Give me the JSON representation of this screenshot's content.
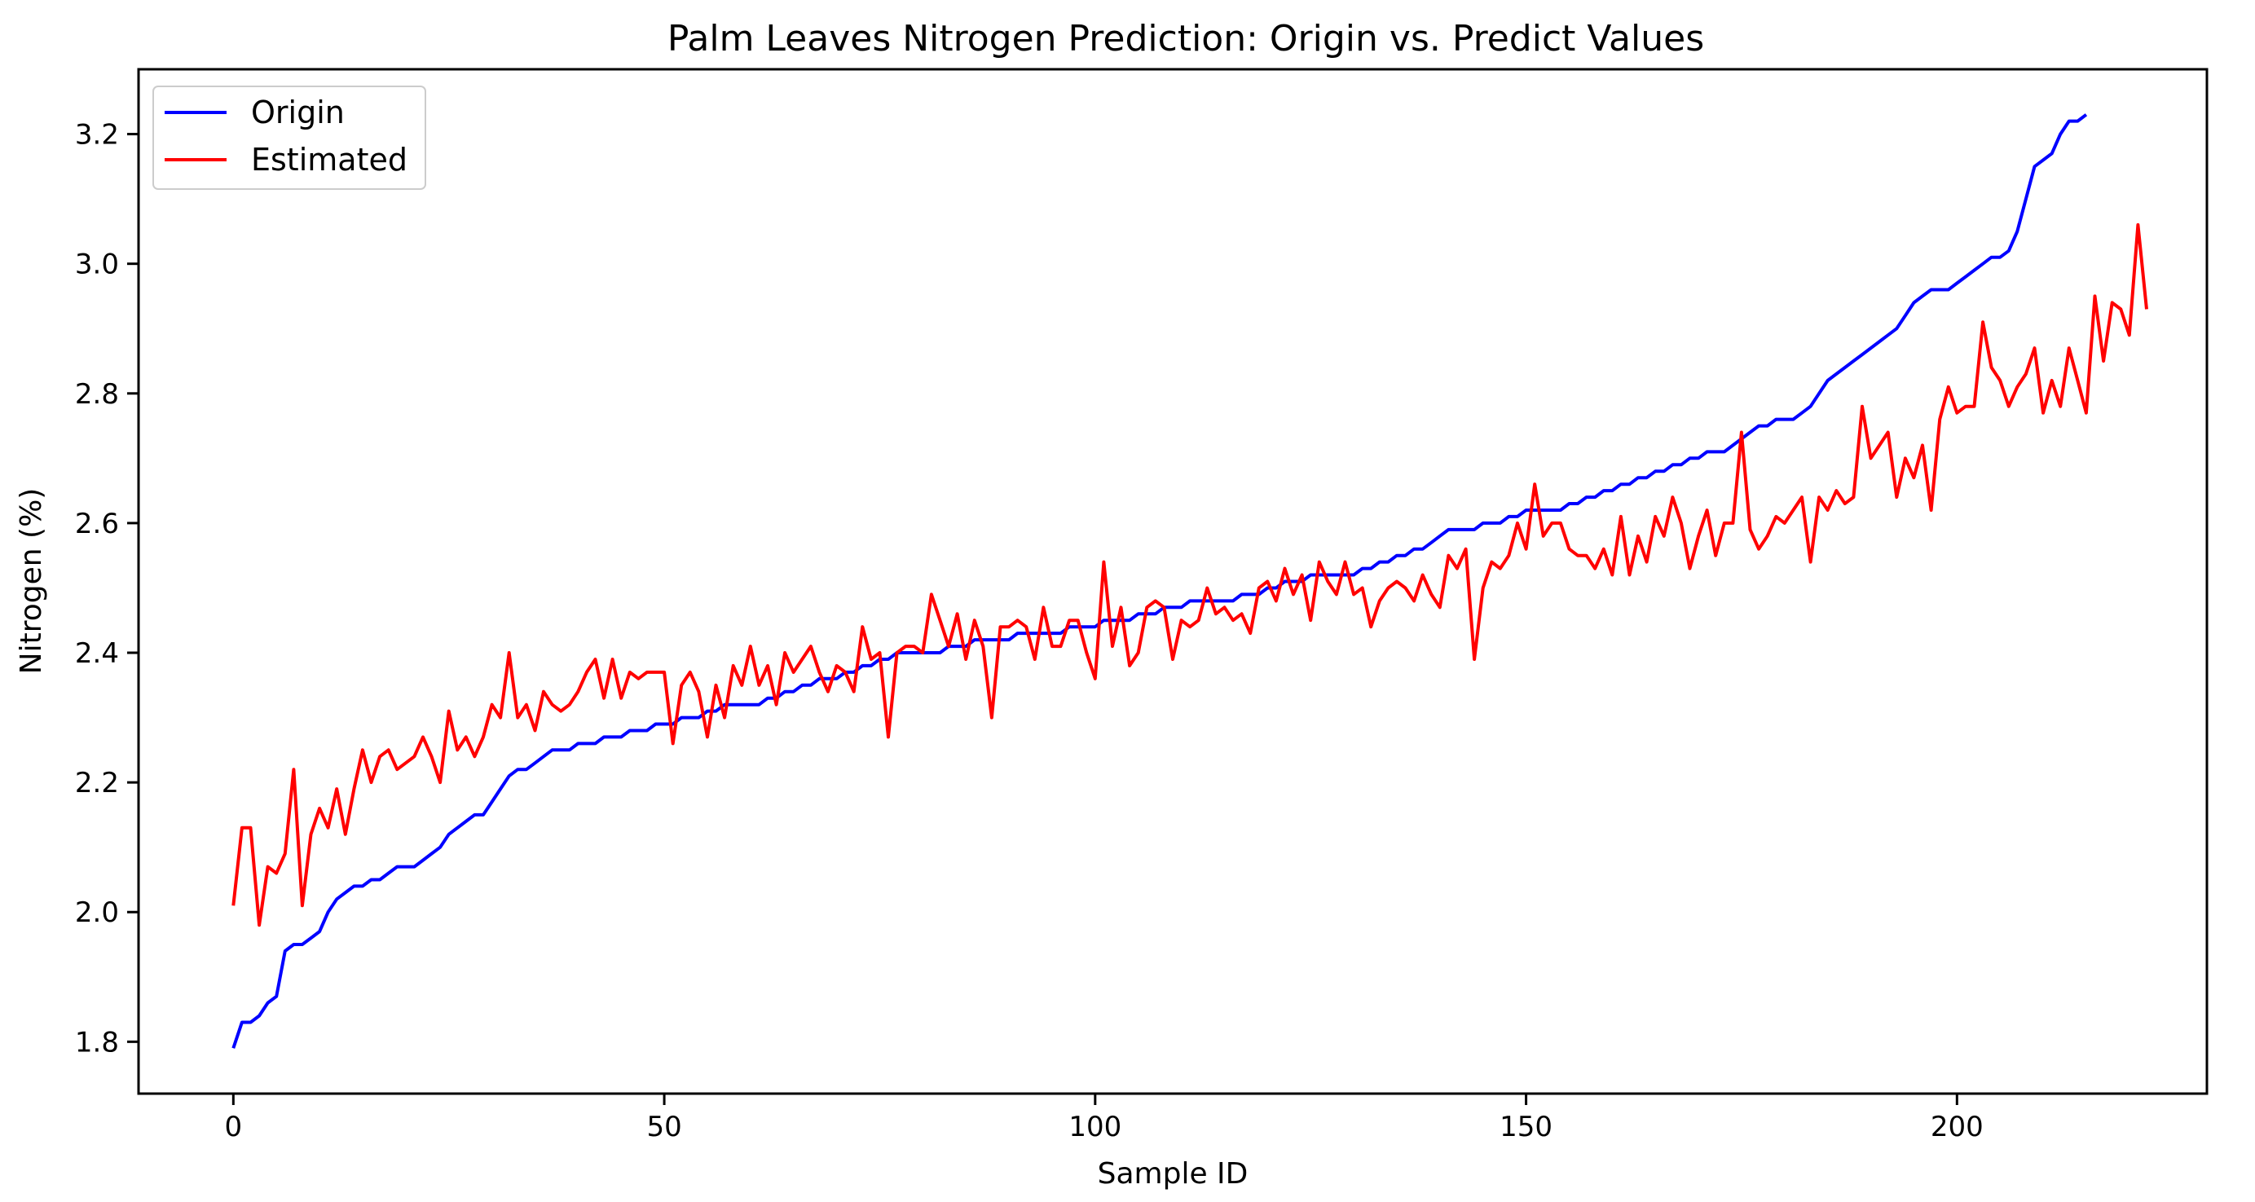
{
  "chart_data": {
    "type": "line",
    "title": "Palm Leaves Nitrogen Prediction: Origin vs. Predict Values",
    "xlabel": "Sample ID",
    "ylabel": "Nitrogen (%)",
    "xlim": [
      -11,
      229
    ],
    "ylim": [
      1.72,
      3.3
    ],
    "xticks": [
      0,
      50,
      100,
      150,
      200
    ],
    "yticks": [
      1.8,
      2.0,
      2.2,
      2.4,
      2.6,
      2.8,
      3.0,
      3.2
    ],
    "legend_position": "upper-left",
    "grid": false,
    "series": [
      {
        "name": "Origin",
        "color": "#0000ff",
        "x_start": 0,
        "values": [
          1.79,
          1.83,
          1.83,
          1.84,
          1.86,
          1.87,
          1.94,
          1.95,
          1.95,
          1.96,
          1.97,
          2.0,
          2.02,
          2.03,
          2.04,
          2.04,
          2.05,
          2.05,
          2.06,
          2.07,
          2.07,
          2.07,
          2.08,
          2.09,
          2.1,
          2.12,
          2.13,
          2.14,
          2.15,
          2.15,
          2.17,
          2.19,
          2.21,
          2.22,
          2.22,
          2.23,
          2.24,
          2.25,
          2.25,
          2.25,
          2.26,
          2.26,
          2.26,
          2.27,
          2.27,
          2.27,
          2.28,
          2.28,
          2.28,
          2.29,
          2.29,
          2.29,
          2.3,
          2.3,
          2.3,
          2.31,
          2.31,
          2.32,
          2.32,
          2.32,
          2.32,
          2.32,
          2.33,
          2.33,
          2.34,
          2.34,
          2.35,
          2.35,
          2.36,
          2.36,
          2.36,
          2.37,
          2.37,
          2.38,
          2.38,
          2.39,
          2.39,
          2.4,
          2.4,
          2.4,
          2.4,
          2.4,
          2.4,
          2.41,
          2.41,
          2.41,
          2.42,
          2.42,
          2.42,
          2.42,
          2.42,
          2.43,
          2.43,
          2.43,
          2.43,
          2.43,
          2.43,
          2.44,
          2.44,
          2.44,
          2.44,
          2.45,
          2.45,
          2.45,
          2.45,
          2.46,
          2.46,
          2.46,
          2.47,
          2.47,
          2.47,
          2.48,
          2.48,
          2.48,
          2.48,
          2.48,
          2.48,
          2.49,
          2.49,
          2.49,
          2.5,
          2.5,
          2.51,
          2.51,
          2.51,
          2.52,
          2.52,
          2.52,
          2.52,
          2.52,
          2.52,
          2.53,
          2.53,
          2.54,
          2.54,
          2.55,
          2.55,
          2.56,
          2.56,
          2.57,
          2.58,
          2.59,
          2.59,
          2.59,
          2.59,
          2.6,
          2.6,
          2.6,
          2.61,
          2.61,
          2.62,
          2.62,
          2.62,
          2.62,
          2.62,
          2.63,
          2.63,
          2.64,
          2.64,
          2.65,
          2.65,
          2.66,
          2.66,
          2.67,
          2.67,
          2.68,
          2.68,
          2.69,
          2.69,
          2.7,
          2.7,
          2.71,
          2.71,
          2.71,
          2.72,
          2.73,
          2.74,
          2.75,
          2.75,
          2.76,
          2.76,
          2.76,
          2.77,
          2.78,
          2.8,
          2.82,
          2.83,
          2.84,
          2.85,
          2.86,
          2.87,
          2.88,
          2.89,
          2.9,
          2.92,
          2.94,
          2.95,
          2.96,
          2.96,
          2.96,
          2.97,
          2.98,
          2.99,
          3.0,
          3.01,
          3.01,
          3.02,
          3.05,
          3.1,
          3.15,
          3.16,
          3.17,
          3.2,
          3.22,
          3.22,
          3.23
        ]
      },
      {
        "name": "Estimated",
        "color": "#ff0000",
        "x_start": 0,
        "values": [
          2.01,
          2.13,
          2.13,
          1.98,
          2.07,
          2.06,
          2.09,
          2.22,
          2.01,
          2.12,
          2.16,
          2.13,
          2.19,
          2.12,
          2.19,
          2.25,
          2.2,
          2.24,
          2.25,
          2.22,
          2.23,
          2.24,
          2.27,
          2.24,
          2.2,
          2.31,
          2.25,
          2.27,
          2.24,
          2.27,
          2.32,
          2.3,
          2.4,
          2.3,
          2.32,
          2.28,
          2.34,
          2.32,
          2.31,
          2.32,
          2.34,
          2.37,
          2.39,
          2.33,
          2.39,
          2.33,
          2.37,
          2.36,
          2.37,
          2.37,
          2.37,
          2.26,
          2.35,
          2.37,
          2.34,
          2.27,
          2.35,
          2.3,
          2.38,
          2.35,
          2.41,
          2.35,
          2.38,
          2.32,
          2.4,
          2.37,
          2.39,
          2.41,
          2.37,
          2.34,
          2.38,
          2.37,
          2.34,
          2.44,
          2.39,
          2.4,
          2.27,
          2.4,
          2.41,
          2.41,
          2.4,
          2.49,
          2.45,
          2.41,
          2.46,
          2.39,
          2.45,
          2.41,
          2.3,
          2.44,
          2.44,
          2.45,
          2.44,
          2.39,
          2.47,
          2.41,
          2.41,
          2.45,
          2.45,
          2.4,
          2.36,
          2.54,
          2.41,
          2.47,
          2.38,
          2.4,
          2.47,
          2.48,
          2.47,
          2.39,
          2.45,
          2.44,
          2.45,
          2.5,
          2.46,
          2.47,
          2.45,
          2.46,
          2.43,
          2.5,
          2.51,
          2.48,
          2.53,
          2.49,
          2.52,
          2.45,
          2.54,
          2.51,
          2.49,
          2.54,
          2.49,
          2.5,
          2.44,
          2.48,
          2.5,
          2.51,
          2.5,
          2.48,
          2.52,
          2.49,
          2.47,
          2.55,
          2.53,
          2.56,
          2.39,
          2.5,
          2.54,
          2.53,
          2.55,
          2.6,
          2.56,
          2.66,
          2.58,
          2.6,
          2.6,
          2.56,
          2.55,
          2.55,
          2.53,
          2.56,
          2.52,
          2.61,
          2.52,
          2.58,
          2.54,
          2.61,
          2.58,
          2.64,
          2.6,
          2.53,
          2.58,
          2.62,
          2.55,
          2.6,
          2.6,
          2.74,
          2.59,
          2.56,
          2.58,
          2.61,
          2.6,
          2.62,
          2.64,
          2.54,
          2.64,
          2.62,
          2.65,
          2.63,
          2.64,
          2.78,
          2.7,
          2.72,
          2.74,
          2.64,
          2.7,
          2.67,
          2.72,
          2.62,
          2.76,
          2.81,
          2.77,
          2.78,
          2.78,
          2.91,
          2.84,
          2.82,
          2.78,
          2.81,
          2.83,
          2.87,
          2.77,
          2.82,
          2.78,
          2.87,
          2.82,
          2.77,
          2.95,
          2.85,
          2.94,
          2.93,
          2.89,
          3.06,
          2.93
        ]
      }
    ]
  }
}
